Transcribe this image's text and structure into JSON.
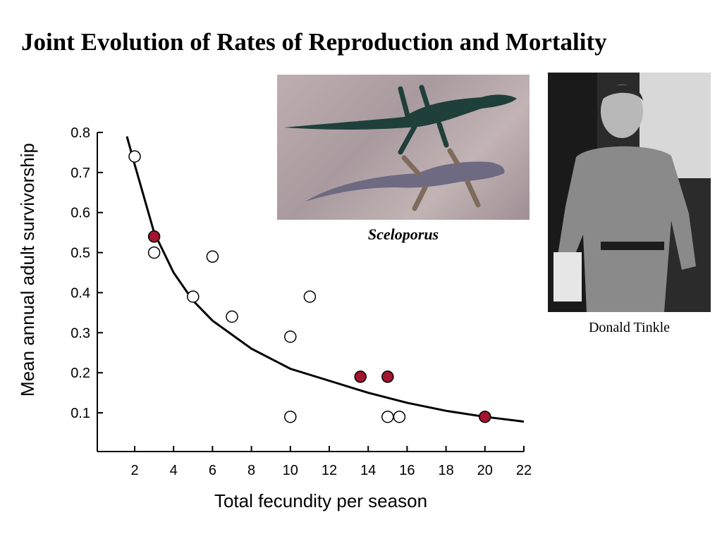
{
  "title": "Joint Evolution of Rates of Reproduction and Mortality",
  "photos": {
    "lizard_caption": "Sceloporus",
    "person_caption": "Donald Tinkle"
  },
  "colors": {
    "filled_point": "#a3142e",
    "open_point": "#ffffff",
    "curve": "#000000"
  },
  "chart_data": {
    "type": "scatter",
    "xlabel": "Total fecundity per season",
    "ylabel": "Mean annual adult survivorship",
    "xlim": [
      0,
      22
    ],
    "ylim": [
      0,
      0.8
    ],
    "x_ticks": [
      2,
      4,
      6,
      8,
      10,
      12,
      14,
      16,
      18,
      20,
      22
    ],
    "y_ticks": [
      0.1,
      0.2,
      0.3,
      0.4,
      0.5,
      0.6,
      0.7,
      0.8
    ],
    "grid": false,
    "series": [
      {
        "style": "open",
        "points": [
          [
            2.0,
            0.74
          ],
          [
            3.0,
            0.5
          ],
          [
            6.0,
            0.49
          ],
          [
            5.0,
            0.39
          ],
          [
            7.0,
            0.34
          ],
          [
            11.0,
            0.39
          ],
          [
            10.0,
            0.29
          ],
          [
            10.0,
            0.09
          ],
          [
            15.0,
            0.09
          ],
          [
            15.6,
            0.09
          ]
        ]
      },
      {
        "style": "filled",
        "points": [
          [
            3.0,
            0.54
          ],
          [
            13.6,
            0.19
          ],
          [
            15.0,
            0.19
          ],
          [
            20.0,
            0.09
          ]
        ]
      }
    ],
    "fit_curve": {
      "points": [
        [
          1.6,
          0.79
        ],
        [
          2,
          0.72
        ],
        [
          3,
          0.55
        ],
        [
          4,
          0.45
        ],
        [
          5,
          0.38
        ],
        [
          6,
          0.33
        ],
        [
          8,
          0.26
        ],
        [
          10,
          0.21
        ],
        [
          12,
          0.18
        ],
        [
          14,
          0.15
        ],
        [
          16,
          0.125
        ],
        [
          18,
          0.105
        ],
        [
          20,
          0.09
        ],
        [
          22,
          0.078
        ]
      ]
    }
  }
}
